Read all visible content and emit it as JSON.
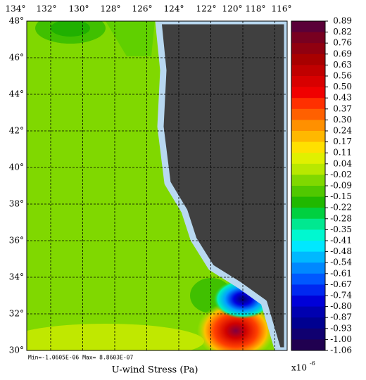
{
  "map": {
    "lon_labels": [
      "134°",
      "132°",
      "130°",
      "128°",
      "126°",
      "124°",
      "122°",
      "120°",
      "118°",
      "116°"
    ],
    "lat_labels": [
      "48°",
      "46°",
      "44°",
      "42°",
      "40°",
      "38°",
      "36°",
      "34°",
      "32°",
      "30°"
    ],
    "colorbar": {
      "labels": [
        "0.89",
        "0.82",
        "0.76",
        "0.69",
        "0.63",
        "0.56",
        "0.50",
        "0.43",
        "0.37",
        "0.30",
        "0.24",
        "0.17",
        "0.11",
        "0.04",
        "-0.02",
        "-0.09",
        "-0.15",
        "-0.22",
        "-0.28",
        "-0.35",
        "-0.41",
        "-0.48",
        "-0.54",
        "-0.61",
        "-0.67",
        "-0.74",
        "-0.80",
        "-0.87",
        "-0.93",
        "-1.00",
        "-1.06"
      ],
      "colors": [
        "#5a0038",
        "#780020",
        "#900010",
        "#a80000",
        "#c00000",
        "#d80000",
        "#f00000",
        "#ff3000",
        "#ff6000",
        "#ff9000",
        "#ffb800",
        "#ffe000",
        "#e0f000",
        "#b8e800",
        "#80d800",
        "#50c800",
        "#20b800",
        "#00d040",
        "#00e890",
        "#00f8d0",
        "#00e8ff",
        "#00b8ff",
        "#0088ff",
        "#0058ff",
        "#0028f0",
        "#0000d8",
        "#0000b0",
        "#000090",
        "#100070",
        "#200050"
      ]
    },
    "stats": "Min=-1.0605E-06  Max= 8.8603E-07",
    "title": "U-wind Stress (Pa)",
    "scale": {
      "base": "x10",
      "exponent": "-6"
    }
  }
}
